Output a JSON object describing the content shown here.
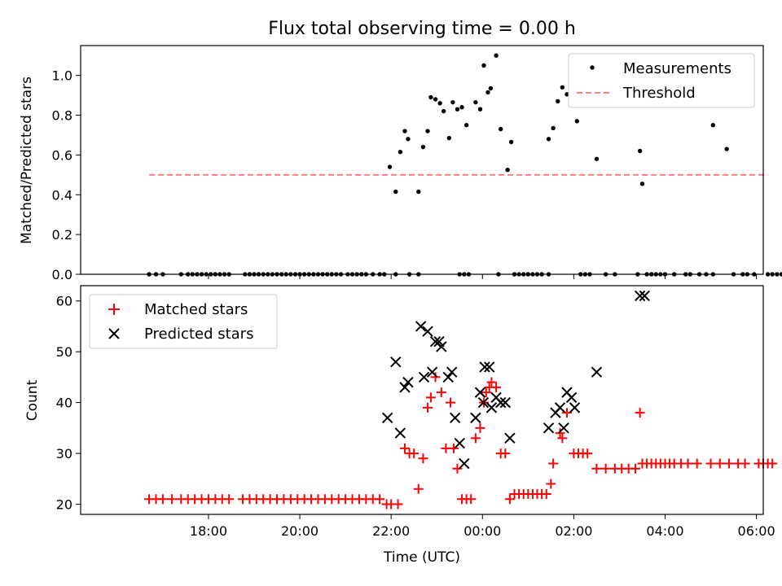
{
  "title": "Flux total observing time = 0.00 h",
  "colors": {
    "measurement": "#000000",
    "threshold": "#ff7f7f",
    "matched": "#ff0000",
    "predicted": "#000000"
  },
  "chart_data": [
    {
      "type": "scatter",
      "ylabel": "Matched/Predicted stars",
      "ylim": [
        0,
        1.15
      ],
      "yticks": [
        0.0,
        0.2,
        0.4,
        0.6,
        0.8,
        1.0
      ],
      "ytick_labels": [
        "0.0",
        "0.2",
        "0.4",
        "0.6",
        "0.8",
        "1.0"
      ],
      "xlim_hours": [
        15.2,
        30.15
      ],
      "legend_position": "upper right",
      "grid": false,
      "series": [
        {
          "name": "Measurements",
          "marker": "dot",
          "color": "#000000",
          "points": [
            [
              16.7,
              0
            ],
            [
              16.85,
              0
            ],
            [
              17.0,
              0
            ],
            [
              17.4,
              0
            ],
            [
              17.55,
              0
            ],
            [
              17.65,
              0
            ],
            [
              17.75,
              0
            ],
            [
              17.85,
              0
            ],
            [
              17.95,
              0
            ],
            [
              18.05,
              0
            ],
            [
              18.15,
              0
            ],
            [
              18.25,
              0
            ],
            [
              18.35,
              0
            ],
            [
              18.45,
              0
            ],
            [
              18.8,
              0
            ],
            [
              18.9,
              0
            ],
            [
              19.0,
              0
            ],
            [
              19.1,
              0
            ],
            [
              19.2,
              0
            ],
            [
              19.3,
              0
            ],
            [
              19.4,
              0
            ],
            [
              19.5,
              0
            ],
            [
              19.6,
              0
            ],
            [
              19.7,
              0
            ],
            [
              19.8,
              0
            ],
            [
              19.9,
              0
            ],
            [
              20.0,
              0
            ],
            [
              20.1,
              0
            ],
            [
              20.2,
              0
            ],
            [
              20.3,
              0
            ],
            [
              20.4,
              0
            ],
            [
              20.5,
              0
            ],
            [
              20.6,
              0
            ],
            [
              20.7,
              0
            ],
            [
              20.8,
              0
            ],
            [
              20.9,
              0
            ],
            [
              21.05,
              0
            ],
            [
              21.15,
              0
            ],
            [
              21.25,
              0
            ],
            [
              21.35,
              0
            ],
            [
              21.45,
              0
            ],
            [
              21.6,
              0
            ],
            [
              21.75,
              0
            ],
            [
              21.85,
              0
            ],
            [
              22.1,
              0
            ],
            [
              22.4,
              0
            ],
            [
              22.6,
              0
            ],
            [
              23.5,
              0
            ],
            [
              23.6,
              0
            ],
            [
              23.7,
              0
            ],
            [
              24.35,
              0
            ],
            [
              24.7,
              0
            ],
            [
              24.8,
              0
            ],
            [
              24.9,
              0
            ],
            [
              25.0,
              0
            ],
            [
              25.1,
              0
            ],
            [
              25.2,
              0
            ],
            [
              25.3,
              0
            ],
            [
              25.45,
              0
            ],
            [
              26.15,
              0
            ],
            [
              26.25,
              0
            ],
            [
              26.35,
              0
            ],
            [
              26.7,
              0
            ],
            [
              26.9,
              0
            ],
            [
              27.4,
              0
            ],
            [
              27.6,
              0
            ],
            [
              27.7,
              0
            ],
            [
              27.8,
              0
            ],
            [
              27.9,
              0
            ],
            [
              28.0,
              0
            ],
            [
              28.2,
              0
            ],
            [
              28.45,
              0
            ],
            [
              28.55,
              0
            ],
            [
              28.75,
              0
            ],
            [
              28.9,
              0
            ],
            [
              29.05,
              0
            ],
            [
              29.5,
              0
            ],
            [
              29.7,
              0
            ],
            [
              29.8,
              0
            ],
            [
              29.95,
              0
            ],
            [
              30.25,
              0
            ],
            [
              30.35,
              0
            ],
            [
              30.45,
              0
            ],
            [
              30.55,
              0
            ],
            [
              29.05,
              0.75
            ],
            [
              29.35,
              0.63
            ],
            [
              21.97,
              0.54
            ],
            [
              22.1,
              0.415
            ],
            [
              22.2,
              0.615
            ],
            [
              22.3,
              0.72
            ],
            [
              22.37,
              0.68
            ],
            [
              22.6,
              0.415
            ],
            [
              22.7,
              0.64
            ],
            [
              22.8,
              0.72
            ],
            [
              22.87,
              0.89
            ],
            [
              22.97,
              0.88
            ],
            [
              23.07,
              0.86
            ],
            [
              23.15,
              0.82
            ],
            [
              23.27,
              0.685
            ],
            [
              23.35,
              0.865
            ],
            [
              23.45,
              0.83
            ],
            [
              23.55,
              0.84
            ],
            [
              23.65,
              0.75
            ],
            [
              23.85,
              0.865
            ],
            [
              23.95,
              0.83
            ],
            [
              24.03,
              1.05
            ],
            [
              24.12,
              0.915
            ],
            [
              24.18,
              0.935
            ],
            [
              24.3,
              1.1
            ],
            [
              24.4,
              0.73
            ],
            [
              24.55,
              0.525
            ],
            [
              24.63,
              0.665
            ],
            [
              25.45,
              0.68
            ],
            [
              25.55,
              0.735
            ],
            [
              25.65,
              0.87
            ],
            [
              25.75,
              0.94
            ],
            [
              25.85,
              0.905
            ],
            [
              25.95,
              1.02
            ],
            [
              26.07,
              0.77
            ],
            [
              26.5,
              0.58
            ],
            [
              27.45,
              0.62
            ],
            [
              27.5,
              0.455
            ]
          ]
        },
        {
          "name": "Threshold",
          "marker": "dashed-line",
          "color": "#ff7f7f",
          "points": [
            [
              16.7,
              0.5
            ],
            [
              30.25,
              0.5
            ]
          ]
        }
      ]
    },
    {
      "type": "scatter",
      "xlabel": "Time (UTC)",
      "ylabel": "Count",
      "ylim": [
        18,
        63
      ],
      "yticks": [
        20,
        30,
        40,
        50,
        60
      ],
      "ytick_labels": [
        "20",
        "30",
        "40",
        "50",
        "60"
      ],
      "xticks_hours": [
        18,
        20,
        22,
        24,
        26,
        28,
        30
      ],
      "xtick_labels": [
        "18:00",
        "20:00",
        "22:00",
        "00:00",
        "02:00",
        "04:00",
        "06:00"
      ],
      "legend_position": "upper left",
      "grid": false,
      "series": [
        {
          "name": "Matched stars",
          "marker": "plus",
          "color": "#ff0000",
          "points": [
            [
              16.7,
              21
            ],
            [
              16.85,
              21
            ],
            [
              17.0,
              21
            ],
            [
              17.2,
              21
            ],
            [
              17.4,
              21
            ],
            [
              17.55,
              21
            ],
            [
              17.7,
              21
            ],
            [
              17.85,
              21
            ],
            [
              18.0,
              21
            ],
            [
              18.15,
              21
            ],
            [
              18.3,
              21
            ],
            [
              18.45,
              21
            ],
            [
              18.75,
              21
            ],
            [
              18.9,
              21
            ],
            [
              19.05,
              21
            ],
            [
              19.2,
              21
            ],
            [
              19.35,
              21
            ],
            [
              19.5,
              21
            ],
            [
              19.65,
              21
            ],
            [
              19.8,
              21
            ],
            [
              19.95,
              21
            ],
            [
              20.1,
              21
            ],
            [
              20.25,
              21
            ],
            [
              20.4,
              21
            ],
            [
              20.55,
              21
            ],
            [
              20.7,
              21
            ],
            [
              20.85,
              21
            ],
            [
              21.0,
              21
            ],
            [
              21.15,
              21
            ],
            [
              21.3,
              21
            ],
            [
              21.45,
              21
            ],
            [
              21.6,
              21
            ],
            [
              21.75,
              21
            ],
            [
              21.9,
              20
            ],
            [
              22.0,
              20
            ],
            [
              22.15,
              20
            ],
            [
              22.3,
              31
            ],
            [
              22.4,
              30
            ],
            [
              22.5,
              30
            ],
            [
              22.6,
              23
            ],
            [
              22.7,
              29
            ],
            [
              22.8,
              39
            ],
            [
              22.87,
              41
            ],
            [
              22.97,
              45
            ],
            [
              23.1,
              42
            ],
            [
              23.2,
              31
            ],
            [
              23.3,
              40
            ],
            [
              23.37,
              31
            ],
            [
              23.45,
              27
            ],
            [
              23.55,
              21
            ],
            [
              23.65,
              21
            ],
            [
              23.75,
              21
            ],
            [
              23.85,
              33
            ],
            [
              23.95,
              35
            ],
            [
              24.03,
              40
            ],
            [
              24.08,
              42
            ],
            [
              24.15,
              43
            ],
            [
              24.2,
              44
            ],
            [
              24.3,
              43
            ],
            [
              24.4,
              30
            ],
            [
              24.5,
              30
            ],
            [
              24.6,
              21
            ],
            [
              24.7,
              22
            ],
            [
              24.8,
              22
            ],
            [
              24.9,
              22
            ],
            [
              25.0,
              22
            ],
            [
              25.1,
              22
            ],
            [
              25.2,
              22
            ],
            [
              25.3,
              22
            ],
            [
              25.4,
              22
            ],
            [
              25.5,
              24
            ],
            [
              25.55,
              28
            ],
            [
              25.7,
              34
            ],
            [
              25.75,
              33
            ],
            [
              25.85,
              38
            ],
            [
              26.0,
              30
            ],
            [
              26.1,
              30
            ],
            [
              26.2,
              30
            ],
            [
              26.3,
              30
            ],
            [
              26.5,
              27
            ],
            [
              26.7,
              27
            ],
            [
              26.9,
              27
            ],
            [
              27.05,
              27
            ],
            [
              27.2,
              27
            ],
            [
              27.35,
              27
            ],
            [
              27.5,
              28
            ],
            [
              27.6,
              28
            ],
            [
              27.7,
              28
            ],
            [
              27.8,
              28
            ],
            [
              27.9,
              28
            ],
            [
              28.0,
              28
            ],
            [
              28.1,
              28
            ],
            [
              28.2,
              28
            ],
            [
              28.35,
              28
            ],
            [
              28.5,
              28
            ],
            [
              28.7,
              28
            ],
            [
              29.0,
              28
            ],
            [
              29.2,
              28
            ],
            [
              29.4,
              28
            ],
            [
              29.6,
              28
            ],
            [
              29.75,
              28
            ],
            [
              30.05,
              28
            ],
            [
              30.15,
              28
            ],
            [
              30.25,
              28
            ],
            [
              30.35,
              28
            ],
            [
              27.45,
              38
            ]
          ]
        },
        {
          "name": "Predicted stars",
          "marker": "x",
          "color": "#000000",
          "points": [
            [
              21.92,
              37
            ],
            [
              22.1,
              48
            ],
            [
              22.2,
              34
            ],
            [
              22.3,
              43
            ],
            [
              22.37,
              44
            ],
            [
              22.65,
              55
            ],
            [
              22.72,
              45
            ],
            [
              22.8,
              54
            ],
            [
              22.9,
              46
            ],
            [
              22.97,
              52
            ],
            [
              23.05,
              52
            ],
            [
              23.1,
              51
            ],
            [
              23.25,
              45
            ],
            [
              23.33,
              46
            ],
            [
              23.4,
              37
            ],
            [
              23.5,
              32
            ],
            [
              23.6,
              28
            ],
            [
              23.85,
              37
            ],
            [
              23.95,
              42
            ],
            [
              24.02,
              40
            ],
            [
              24.05,
              47
            ],
            [
              24.15,
              47
            ],
            [
              24.2,
              39
            ],
            [
              24.3,
              41
            ],
            [
              24.4,
              40
            ],
            [
              24.5,
              40
            ],
            [
              24.6,
              33
            ],
            [
              25.45,
              35
            ],
            [
              25.6,
              38
            ],
            [
              25.7,
              39
            ],
            [
              25.78,
              35
            ],
            [
              25.85,
              42
            ],
            [
              25.95,
              41
            ],
            [
              26.02,
              39
            ],
            [
              26.5,
              46
            ],
            [
              27.45,
              61
            ],
            [
              27.55,
              61
            ]
          ]
        }
      ]
    }
  ]
}
